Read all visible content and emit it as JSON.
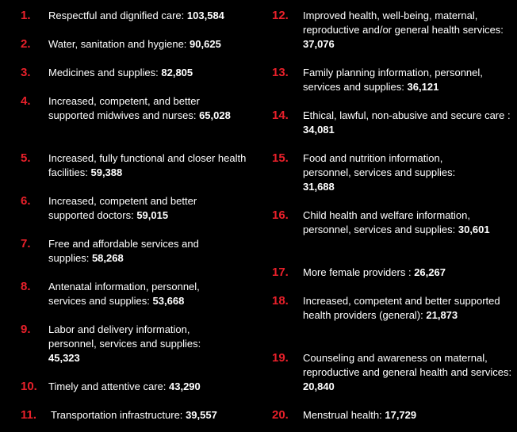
{
  "items": [
    {
      "num": "1.",
      "label": "Respectful and dignified care:",
      "value": "103,584"
    },
    {
      "num": "2.",
      "label": "Water, sanitation and hygiene:",
      "value": "90,625"
    },
    {
      "num": "3.",
      "label": "Medicines and supplies:",
      "value": "82,805"
    },
    {
      "num": "4.",
      "label": "Increased, competent, and better supported midwives and nurses:",
      "value": "65,028"
    },
    {
      "num": "5.",
      "label": "Increased, fully functional and closer health facilities:",
      "value": "59,388"
    },
    {
      "num": "6.",
      "label": "Increased, competent and better supported doctors:",
      "value": "59,015"
    },
    {
      "num": "7.",
      "label": "Free and affordable services and supplies:",
      "value": "58,268"
    },
    {
      "num": "8.",
      "label": "Antenatal information, personnel, services and supplies:",
      "value": "53,668"
    },
    {
      "num": "9.",
      "label": "Labor and delivery information, personnel, services and supplies:",
      "value": "45,323"
    },
    {
      "num": "10.",
      "label": "Timely and attentive care:",
      "value": "43,290"
    },
    {
      "num": "11.",
      "label": "Transportation infrastructure:",
      "value": "39,557"
    },
    {
      "num": "12.",
      "label": "Improved health, well-being, maternal, reproductive and/or general health services:",
      "value": "37,076"
    },
    {
      "num": "13.",
      "label": "Family planning information, personnel, services and supplies:",
      "value": "36,121"
    },
    {
      "num": "14.",
      "label": "Ethical, lawful, non-abusive and secure care :",
      "value": "34,081"
    },
    {
      "num": "15.",
      "label": "Food and nutrition information, personnel, services and supplies:",
      "value": "31,688"
    },
    {
      "num": "16.",
      "label": "Child health and welfare information, personnel, services and supplies:",
      "value": "30,601"
    },
    {
      "num": "17.",
      "label": "More female providers :",
      "value": "26,267"
    },
    {
      "num": "18.",
      "label": "Increased, competent and better supported health providers (general):",
      "value": "21,873"
    },
    {
      "num": "19.",
      "label": "Counseling and awareness on maternal, reproductive and general health and services:",
      "value": "20,840"
    },
    {
      "num": "20.",
      "label": "Menstrual health:",
      "value": "17,729"
    }
  ],
  "colors": {
    "background": "#000000",
    "number": "#e8202a",
    "text": "#ffffff"
  }
}
